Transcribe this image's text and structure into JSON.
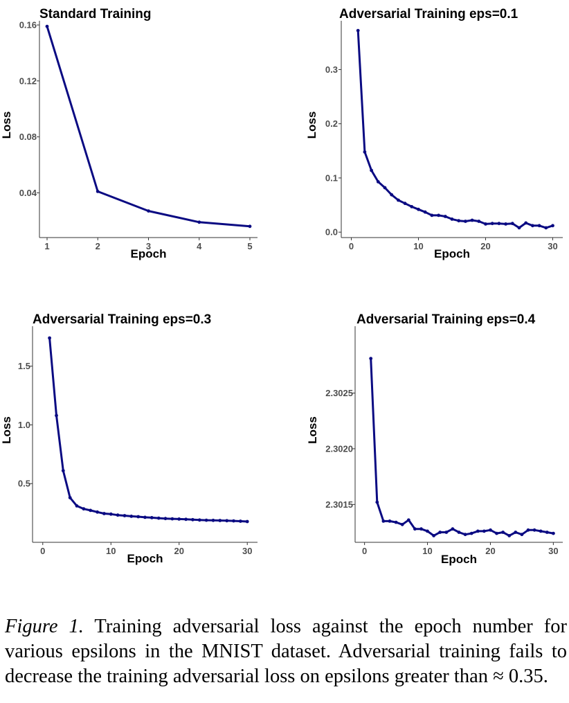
{
  "chart_data": [
    {
      "type": "line",
      "title": "Standard Training",
      "xlabel": "Epoch",
      "ylabel": "Loss",
      "xlim": [
        0.85,
        5.15
      ],
      "ylim": [
        0.008,
        0.163
      ],
      "xticks": [
        1,
        2,
        3,
        4,
        5
      ],
      "yticks": [
        0.04,
        0.08,
        0.12,
        0.16
      ],
      "xtick_labels": [
        "1",
        "2",
        "3",
        "4",
        "5"
      ],
      "ytick_labels": [
        "0.04",
        "0.08",
        "0.12",
        "0.16"
      ],
      "x": [
        1,
        2,
        3,
        4,
        5
      ],
      "values": [
        0.159,
        0.041,
        0.027,
        0.019,
        0.016
      ]
    },
    {
      "type": "line",
      "title": "Adversarial Training eps=0.1",
      "xlabel": "Epoch",
      "ylabel": "Loss",
      "xlim": [
        -1.5,
        31.5
      ],
      "ylim": [
        -0.01,
        0.39
      ],
      "xticks": [
        0,
        10,
        20,
        30
      ],
      "yticks": [
        0.0,
        0.1,
        0.2,
        0.3
      ],
      "xtick_labels": [
        "0",
        "10",
        "20",
        "30"
      ],
      "ytick_labels": [
        "0.0",
        "0.1",
        "0.2",
        "0.3"
      ],
      "x": [
        1,
        2,
        3,
        4,
        5,
        6,
        7,
        8,
        9,
        10,
        11,
        12,
        13,
        14,
        15,
        16,
        17,
        18,
        19,
        20,
        21,
        22,
        23,
        24,
        25,
        26,
        27,
        28,
        29,
        30
      ],
      "values": [
        0.372,
        0.148,
        0.114,
        0.093,
        0.082,
        0.069,
        0.059,
        0.053,
        0.047,
        0.042,
        0.037,
        0.031,
        0.031,
        0.029,
        0.024,
        0.021,
        0.02,
        0.022,
        0.02,
        0.015,
        0.016,
        0.016,
        0.015,
        0.016,
        0.008,
        0.017,
        0.012,
        0.012,
        0.008,
        0.012
      ]
    },
    {
      "type": "line",
      "title": "Adversarial Training eps=0.3",
      "xlabel": "Epoch",
      "ylabel": "Loss",
      "xlim": [
        -1.5,
        31.5
      ],
      "ylim": [
        0.0,
        1.84
      ],
      "xticks": [
        0,
        10,
        20,
        30
      ],
      "yticks": [
        0.5,
        1.0,
        1.5
      ],
      "xtick_labels": [
        "0",
        "10",
        "20",
        "30"
      ],
      "ytick_labels": [
        "0.5",
        "1.0",
        "1.5"
      ],
      "x": [
        1,
        2,
        3,
        4,
        5,
        6,
        7,
        8,
        9,
        10,
        11,
        12,
        13,
        14,
        15,
        16,
        17,
        18,
        19,
        20,
        21,
        22,
        23,
        24,
        25,
        26,
        27,
        28,
        29,
        30
      ],
      "values": [
        1.74,
        1.08,
        0.61,
        0.38,
        0.31,
        0.285,
        0.272,
        0.258,
        0.245,
        0.24,
        0.232,
        0.227,
        0.222,
        0.218,
        0.213,
        0.21,
        0.206,
        0.202,
        0.2,
        0.198,
        0.196,
        0.193,
        0.19,
        0.188,
        0.187,
        0.186,
        0.184,
        0.182,
        0.18,
        0.177
      ]
    },
    {
      "type": "line",
      "title": "Adversarial Training eps=0.4",
      "xlabel": "Epoch",
      "ylabel": "Loss",
      "xlim": [
        -1.5,
        31.5
      ],
      "ylim": [
        2.30116,
        2.3031
      ],
      "xticks": [
        0,
        10,
        20,
        30
      ],
      "yticks": [
        2.3015,
        2.302,
        2.3025
      ],
      "xtick_labels": [
        "0",
        "10",
        "20",
        "30"
      ],
      "ytick_labels": [
        "2.3015",
        "2.3020",
        "2.3025"
      ],
      "x": [
        1,
        2,
        3,
        4,
        5,
        6,
        7,
        8,
        9,
        10,
        11,
        12,
        13,
        14,
        15,
        16,
        17,
        18,
        19,
        20,
        21,
        22,
        23,
        24,
        25,
        26,
        27,
        28,
        29,
        30
      ],
      "values": [
        2.30281,
        2.30152,
        2.30135,
        2.30135,
        2.30134,
        2.30132,
        2.30136,
        2.30128,
        2.30128,
        2.30126,
        2.30122,
        2.30125,
        2.30125,
        2.30128,
        2.30125,
        2.30123,
        2.30124,
        2.30126,
        2.30126,
        2.30127,
        2.30124,
        2.30125,
        2.30122,
        2.30125,
        2.30123,
        2.30127,
        2.30127,
        2.30126,
        2.30125,
        2.30124
      ]
    }
  ],
  "caption": {
    "label": "Figure 1.",
    "text": " Training adversarial loss against the epoch number for various epsilons in the MNIST dataset. Adversarial training fails to decrease the training adversarial loss on epsilons greater than ≈ 0.35."
  }
}
